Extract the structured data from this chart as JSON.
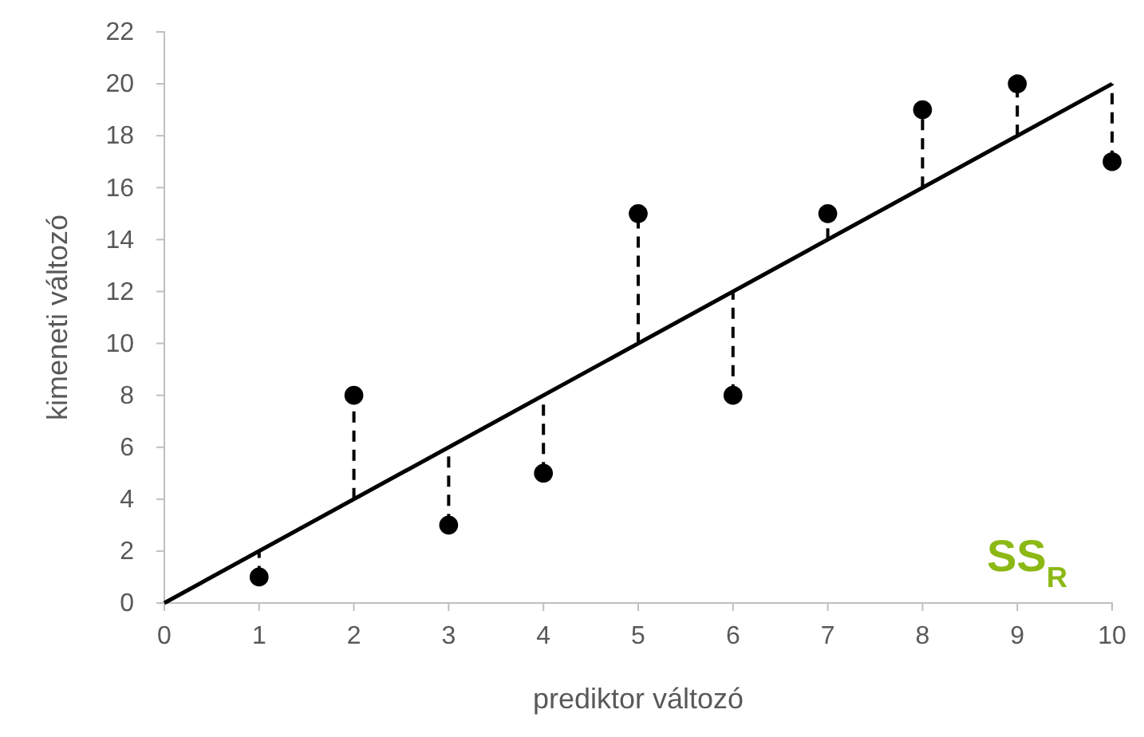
{
  "chart_data": {
    "type": "scatter",
    "xlabel": "prediktor változó",
    "ylabel": "kimeneti változó",
    "x": [
      1,
      2,
      3,
      4,
      5,
      6,
      7,
      8,
      9,
      10
    ],
    "series": [
      {
        "color": "#000000",
        "marker": "circle",
        "values": [
          1,
          8,
          3,
          5,
          15,
          8,
          15,
          19,
          20,
          17
        ],
        "errors": [
          [
            1,
            2
          ],
          [
            4,
            8
          ],
          [
            3,
            6
          ],
          [
            5,
            8
          ],
          [
            10,
            15
          ],
          [
            8,
            12
          ],
          [
            14,
            15
          ],
          [
            16,
            19
          ],
          [
            18,
            20
          ],
          [
            17,
            20
          ]
        ]
      },
      {
        "type": "line",
        "color": "#000000",
        "line_style": "solid",
        "marker": "none",
        "x": [
          0,
          10
        ],
        "values": [
          0,
          20
        ]
      }
    ],
    "xlim": [
      0,
      10
    ],
    "xticks": [
      0,
      1,
      2,
      3,
      4,
      5,
      6,
      7,
      8,
      9,
      10
    ],
    "ylim": [
      0,
      22
    ],
    "yticks": [
      0,
      2,
      4,
      6,
      8,
      10,
      12,
      14,
      16,
      18,
      20,
      22
    ],
    "grid": false,
    "annotations": [
      "SS$_{R}$"
    ]
  }
}
